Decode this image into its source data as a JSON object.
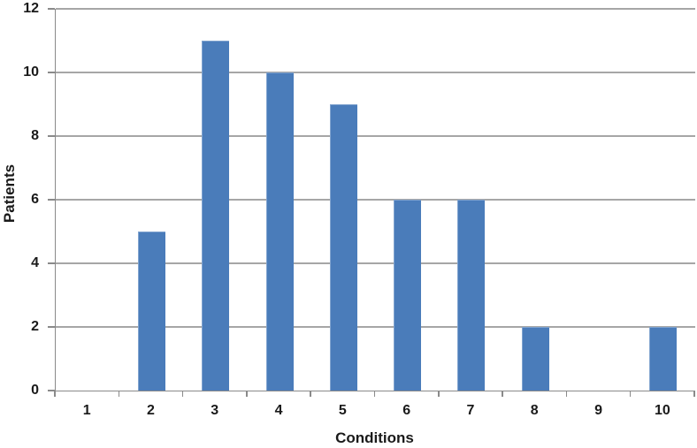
{
  "chart_data": {
    "type": "bar",
    "title": "",
    "xlabel": "Conditions",
    "ylabel": "Patients",
    "categories": [
      "1",
      "2",
      "3",
      "4",
      "5",
      "6",
      "7",
      "8",
      "9",
      "10"
    ],
    "values": [
      0,
      5,
      11,
      10,
      9,
      6,
      6,
      2,
      0,
      2
    ],
    "ylim": [
      0,
      12
    ],
    "yticks": [
      0,
      2,
      4,
      6,
      8,
      10,
      12
    ],
    "grid": "horizontal",
    "legend_position": "none",
    "colors": {
      "bar": "#4a7cba",
      "gridline": "#a6a6a6",
      "axis": "#8a8a8a",
      "text": "#1a1a1a",
      "background": "#ffffff"
    }
  }
}
